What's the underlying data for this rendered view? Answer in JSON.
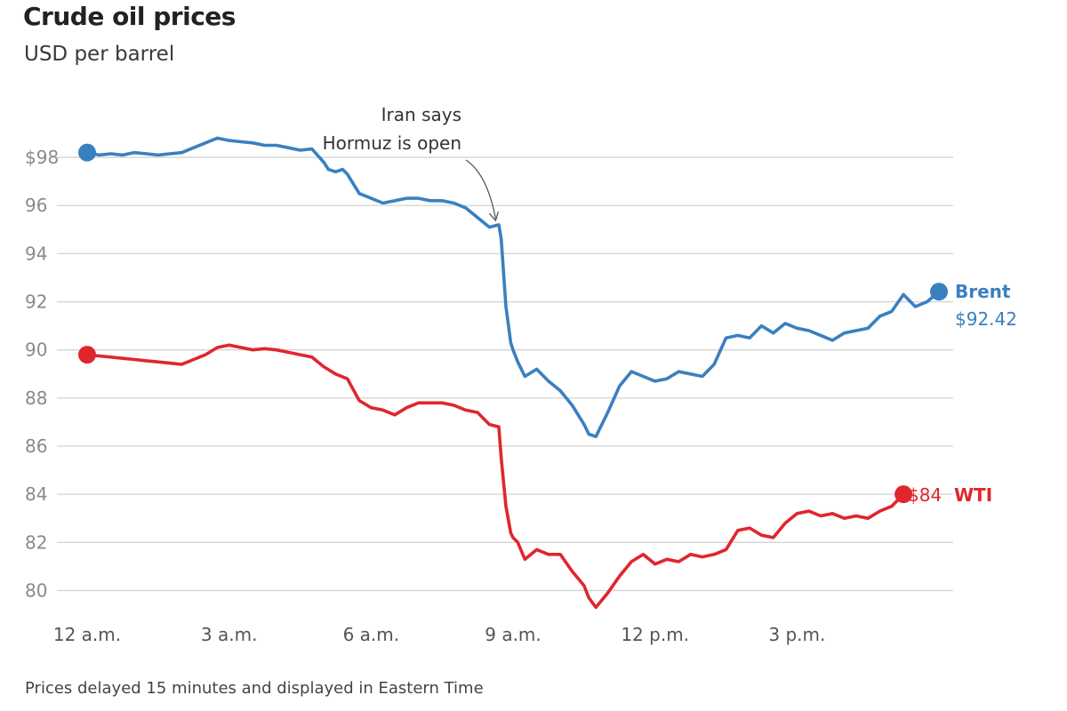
{
  "header": {
    "title": "Crude oil prices",
    "subtitle": "USD per barrel"
  },
  "footnote": "Prices delayed 15 minutes and displayed in Eastern Time",
  "colors": {
    "brent": "#3a80bf",
    "wti": "#e0262c",
    "grid": "#d4d4d4",
    "tick": "#8a8a8a"
  },
  "chart_data": {
    "type": "line",
    "title": "Crude oil prices",
    "subtitle": "USD per barrel",
    "xlabel": "",
    "ylabel": "USD per barrel",
    "x_unit": "hours since 12 a.m. Eastern Time",
    "xlim": [
      0,
      18.3
    ],
    "ylim": [
      79.5,
      99
    ],
    "grid": true,
    "y_ticks": [
      80,
      82,
      84,
      86,
      88,
      90,
      92,
      94,
      96,
      98
    ],
    "y_tick_labels": [
      "80",
      "82",
      "84",
      "86",
      "88",
      "90",
      "92",
      "94",
      "96",
      "$98"
    ],
    "x_ticks": [
      0,
      3,
      6,
      9,
      12,
      15
    ],
    "x_tick_labels": [
      "12 a.m.",
      "3 a.m.",
      "6 a.m.",
      "9 a.m.",
      "12 p.m.",
      "3 p.m."
    ],
    "annotations": [
      {
        "lines": [
          "Iran says",
          "Hormuz is open"
        ],
        "x": 8.65,
        "y": 95.3
      }
    ],
    "series": [
      {
        "name": "Brent",
        "end_label": "$92.42",
        "x": [
          0,
          0.25,
          0.5,
          0.75,
          1,
          1.25,
          1.5,
          1.75,
          2,
          2.25,
          2.5,
          2.75,
          3,
          3.25,
          3.5,
          3.75,
          4,
          4.25,
          4.5,
          4.75,
          5,
          5.1,
          5.25,
          5.4,
          5.5,
          5.75,
          6,
          6.25,
          6.5,
          6.75,
          7,
          7.25,
          7.5,
          7.75,
          8,
          8.25,
          8.5,
          8.7,
          8.75,
          8.85,
          8.95,
          9,
          9.1,
          9.25,
          9.5,
          9.75,
          10,
          10.25,
          10.5,
          10.6,
          10.75,
          11,
          11.25,
          11.5,
          11.75,
          12,
          12.25,
          12.5,
          12.75,
          13,
          13.25,
          13.5,
          13.75,
          14,
          14.25,
          14.5,
          14.75,
          15,
          15.25,
          15.5,
          15.75,
          16,
          16.25,
          16.5,
          16.75,
          17,
          17.25,
          17.5,
          17.75,
          18
        ],
        "values": [
          98.2,
          98.1,
          98.15,
          98.1,
          98.2,
          98.15,
          98.1,
          98.15,
          98.2,
          98.4,
          98.6,
          98.8,
          98.7,
          98.65,
          98.6,
          98.5,
          98.5,
          98.4,
          98.3,
          98.35,
          97.8,
          97.5,
          97.4,
          97.5,
          97.3,
          96.5,
          96.3,
          96.1,
          96.2,
          96.3,
          96.3,
          96.2,
          96.2,
          96.1,
          95.9,
          95.5,
          95.1,
          95.2,
          94.6,
          91.8,
          90.3,
          90.0,
          89.5,
          88.9,
          89.2,
          88.7,
          88.3,
          87.7,
          86.9,
          86.5,
          86.4,
          87.4,
          88.5,
          89.1,
          88.9,
          88.7,
          88.8,
          89.1,
          89.0,
          88.9,
          89.4,
          90.5,
          90.6,
          90.5,
          91.0,
          90.7,
          91.1,
          90.9,
          90.8,
          90.6,
          90.4,
          90.7,
          90.8,
          90.9,
          91.4,
          91.6,
          92.3,
          91.8,
          92.0,
          92.42
        ]
      },
      {
        "name": "WTI",
        "end_label": "$84",
        "x": [
          0,
          0.25,
          0.5,
          0.75,
          1,
          1.25,
          1.5,
          1.75,
          2,
          2.25,
          2.5,
          2.75,
          3,
          3.25,
          3.5,
          3.75,
          4,
          4.25,
          4.5,
          4.75,
          5,
          5.25,
          5.5,
          5.75,
          6,
          6.25,
          6.5,
          6.75,
          7,
          7.25,
          7.5,
          7.75,
          8,
          8.25,
          8.5,
          8.7,
          8.75,
          8.85,
          8.95,
          9,
          9.1,
          9.25,
          9.5,
          9.75,
          10,
          10.25,
          10.5,
          10.6,
          10.75,
          11,
          11.25,
          11.5,
          11.75,
          12,
          12.25,
          12.5,
          12.75,
          13,
          13.25,
          13.5,
          13.75,
          14,
          14.25,
          14.5,
          14.75,
          15,
          15.25,
          15.5,
          15.75,
          16,
          16.25,
          16.5,
          16.75,
          17,
          17.25
        ],
        "values": [
          89.8,
          89.75,
          89.7,
          89.65,
          89.6,
          89.55,
          89.5,
          89.45,
          89.4,
          89.6,
          89.8,
          90.1,
          90.2,
          90.1,
          90.0,
          90.05,
          90.0,
          89.9,
          89.8,
          89.7,
          89.3,
          89.0,
          88.8,
          87.9,
          87.6,
          87.5,
          87.3,
          87.6,
          87.8,
          87.8,
          87.8,
          87.7,
          87.5,
          87.4,
          86.9,
          86.8,
          85.5,
          83.5,
          82.4,
          82.2,
          82.0,
          81.3,
          81.7,
          81.5,
          81.5,
          80.8,
          80.2,
          79.7,
          79.3,
          79.9,
          80.6,
          81.2,
          81.5,
          81.1,
          81.3,
          81.2,
          81.5,
          81.4,
          81.5,
          81.7,
          82.5,
          82.6,
          82.3,
          82.2,
          82.8,
          83.2,
          83.3,
          83.1,
          83.2,
          83.0,
          83.1,
          83.0,
          83.3,
          83.5,
          84.0
        ]
      }
    ]
  }
}
